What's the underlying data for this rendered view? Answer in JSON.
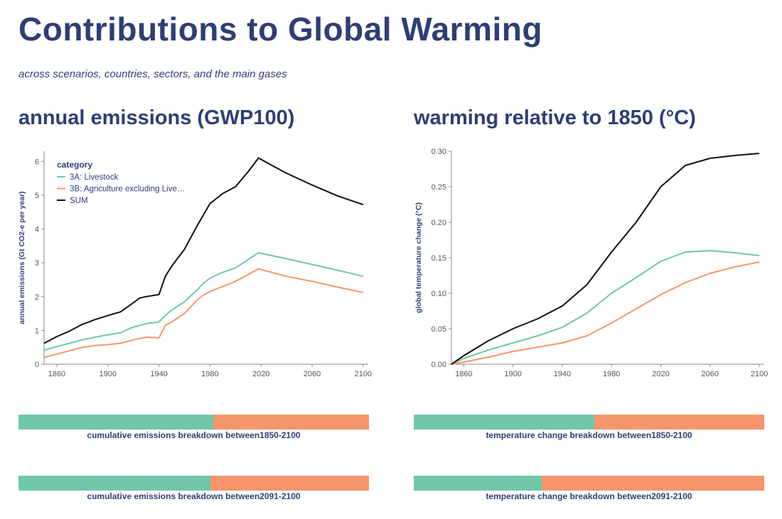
{
  "page": {
    "title": "Contributions to Global Warming",
    "subtitle": "across scenarios, countries, sectors, and the main gases"
  },
  "colors": {
    "livestock": "#6fc7a8",
    "agriculture": "#f5956b",
    "sum": "#111111",
    "axis": "#555555",
    "text": "#2f3e74"
  },
  "panels": {
    "left": {
      "heading": "annual emissions (GWP100)"
    },
    "right": {
      "heading": "warming relative to 1850 (°C)"
    }
  },
  "chart_data": [
    {
      "id": "emissions",
      "type": "line",
      "ylabel": "annual emissions (Gt CO2-e per year)",
      "xlim": [
        1850,
        2104
      ],
      "ylim": [
        0,
        6.3
      ],
      "xticks": [
        "1860",
        "1900",
        "1940",
        "1980",
        "2020",
        "2060",
        "2100"
      ],
      "yticks": [
        "0",
        "1",
        "2",
        "3",
        "4",
        "5",
        "6"
      ],
      "legend": {
        "title": "category",
        "position": "top-left"
      },
      "series": [
        {
          "name": "3A: Livestock",
          "color": "#6fc7a8",
          "x": [
            1850,
            1860,
            1870,
            1880,
            1890,
            1900,
            1910,
            1915,
            1920,
            1930,
            1940,
            1945,
            1950,
            1960,
            1970,
            1975,
            1980,
            1990,
            2000,
            2010,
            2018,
            2030,
            2040,
            2060,
            2080,
            2100
          ],
          "y": [
            0.42,
            0.52,
            0.62,
            0.72,
            0.8,
            0.87,
            0.93,
            1.02,
            1.1,
            1.2,
            1.25,
            1.45,
            1.6,
            1.85,
            2.2,
            2.4,
            2.55,
            2.72,
            2.85,
            3.1,
            3.3,
            3.2,
            3.12,
            2.95,
            2.78,
            2.6
          ]
        },
        {
          "name": "3B: Agriculture excluding Live…",
          "color": "#f5956b",
          "x": [
            1850,
            1860,
            1870,
            1880,
            1890,
            1900,
            1910,
            1920,
            1930,
            1940,
            1945,
            1950,
            1960,
            1970,
            1975,
            1980,
            1990,
            2000,
            2010,
            2018,
            2030,
            2040,
            2060,
            2080,
            2100
          ],
          "y": [
            0.2,
            0.3,
            0.4,
            0.5,
            0.55,
            0.58,
            0.62,
            0.72,
            0.8,
            0.78,
            1.15,
            1.25,
            1.5,
            1.9,
            2.05,
            2.15,
            2.3,
            2.45,
            2.65,
            2.82,
            2.7,
            2.6,
            2.45,
            2.28,
            2.12
          ]
        },
        {
          "name": "SUM",
          "color": "#111111",
          "x": [
            1850,
            1860,
            1870,
            1880,
            1890,
            1900,
            1910,
            1920,
            1925,
            1930,
            1940,
            1945,
            1950,
            1960,
            1970,
            1980,
            1990,
            2000,
            2010,
            2018,
            2030,
            2040,
            2060,
            2080,
            2100
          ],
          "y": [
            0.62,
            0.82,
            0.98,
            1.18,
            1.32,
            1.44,
            1.55,
            1.82,
            1.96,
            2.0,
            2.06,
            2.6,
            2.9,
            3.4,
            4.1,
            4.75,
            5.05,
            5.25,
            5.7,
            6.1,
            5.85,
            5.65,
            5.3,
            4.98,
            4.72
          ]
        }
      ]
    },
    {
      "id": "warming",
      "type": "line",
      "ylabel": "global temperature change (°C)",
      "xlim": [
        1850,
        2104
      ],
      "ylim": [
        0,
        0.3
      ],
      "xticks": [
        "1860",
        "1900",
        "1940",
        "1980",
        "2020",
        "2060",
        "2100"
      ],
      "yticks": [
        "0.00",
        "0.05",
        "0.10",
        "0.15",
        "0.20",
        "0.25",
        "0.30"
      ],
      "series": [
        {
          "name": "3A: Livestock",
          "color": "#6fc7a8",
          "x": [
            1850,
            1860,
            1880,
            1900,
            1920,
            1940,
            1960,
            1980,
            2000,
            2020,
            2040,
            2060,
            2080,
            2100
          ],
          "y": [
            0,
            0.008,
            0.02,
            0.03,
            0.04,
            0.052,
            0.072,
            0.1,
            0.122,
            0.145,
            0.158,
            0.16,
            0.157,
            0.153
          ]
        },
        {
          "name": "3B: Agriculture excluding Live…",
          "color": "#f5956b",
          "x": [
            1850,
            1860,
            1880,
            1900,
            1920,
            1940,
            1960,
            1980,
            2000,
            2020,
            2040,
            2060,
            2080,
            2100
          ],
          "y": [
            0,
            0.003,
            0.01,
            0.018,
            0.024,
            0.03,
            0.04,
            0.058,
            0.078,
            0.098,
            0.115,
            0.128,
            0.137,
            0.144
          ]
        },
        {
          "name": "SUM",
          "color": "#111111",
          "x": [
            1850,
            1860,
            1880,
            1900,
            1920,
            1940,
            1960,
            1980,
            2000,
            2020,
            2040,
            2060,
            2080,
            2100
          ],
          "y": [
            0,
            0.012,
            0.033,
            0.05,
            0.064,
            0.082,
            0.112,
            0.158,
            0.2,
            0.25,
            0.28,
            0.29,
            0.294,
            0.297
          ]
        }
      ]
    }
  ],
  "breakdowns": {
    "emissions_1850_2100": {
      "label": "cumulative emissions breakdown between1850-2100",
      "livestock_share": 0.555
    },
    "emissions_2091_2100": {
      "label": "cumulative emissions breakdown between2091-2100",
      "livestock_share": 0.547
    },
    "temperature_1850_2100": {
      "label": "temperature change breakdown between1850-2100",
      "livestock_share": 0.515
    },
    "temperature_2091_2100": {
      "label": "temperature change breakdown between2091-2100",
      "livestock_share": 0.366
    }
  }
}
